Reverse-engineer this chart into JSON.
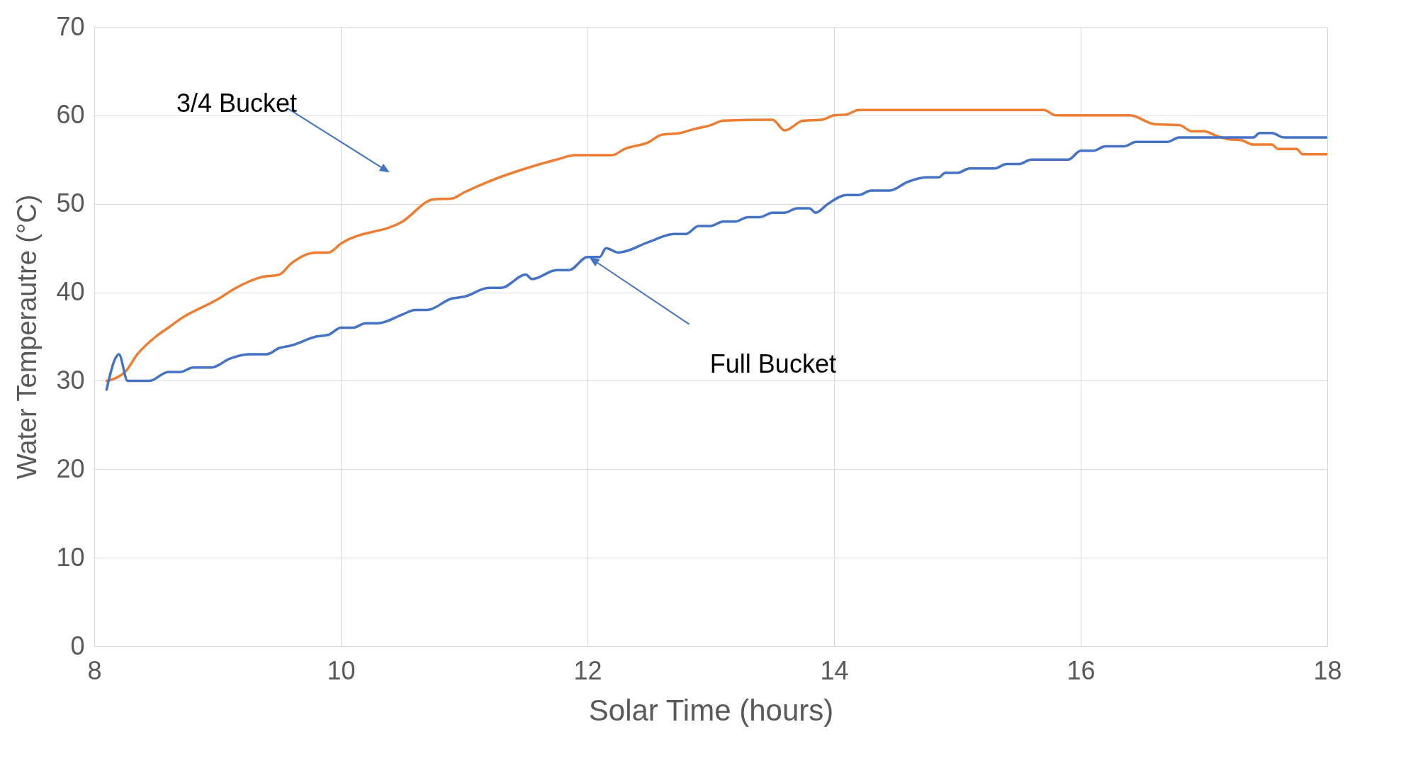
{
  "chart_data": {
    "type": "line",
    "xlabel": "Solar Time (hours)",
    "ylabel": "Water Temperautre (°C)",
    "xlim": [
      8,
      18
    ],
    "xticks": [
      8,
      10,
      12,
      14,
      16,
      18
    ],
    "ylim": [
      0,
      70
    ],
    "yticks": [
      0,
      10,
      20,
      30,
      40,
      50,
      60,
      70
    ],
    "grid": true,
    "series": [
      {
        "color": "#ed7d31",
        "x": [
          8.1,
          8.25,
          8.35,
          8.5,
          8.6,
          8.7,
          9.0,
          9.15,
          9.35,
          9.5,
          9.6,
          9.8,
          9.9,
          10.0,
          10.5,
          10.75,
          10.9,
          11.0,
          11.25,
          11.5,
          11.75,
          11.9,
          12.2,
          12.3,
          12.5,
          12.6,
          12.75,
          12.85,
          13.0,
          13.1,
          13.5,
          13.6,
          13.75,
          13.9,
          14.0,
          14.1,
          14.2,
          15.7,
          15.8,
          16.4,
          16.6,
          16.8,
          16.9,
          17.0,
          17.1,
          17.2,
          17.3,
          17.4,
          17.55,
          17.6,
          17.75,
          17.8,
          18.0
        ],
        "values": [
          30,
          31,
          33,
          35,
          36,
          37,
          39.2,
          40.5,
          41.7,
          42,
          43.3,
          44.5,
          44.5,
          45.5,
          48,
          50.5,
          50.6,
          51.3,
          52.8,
          54,
          55,
          55.5,
          55.5,
          56.2,
          57,
          57.8,
          58,
          58.4,
          58.9,
          59.4,
          59.5,
          58.3,
          59.4,
          59.5,
          60,
          60.1,
          60.6,
          60.6,
          60,
          60,
          59,
          58.9,
          58.2,
          58.2,
          57.7,
          57.3,
          57.2,
          56.7,
          56.7,
          56.2,
          56.2,
          55.6,
          55.6
        ]
      },
      {
        "color": "#4472c4",
        "x": [
          8.1,
          8.17,
          8.2,
          8.27,
          8.35,
          8.45,
          8.6,
          8.7,
          8.8,
          8.95,
          9.1,
          9.25,
          9.4,
          9.5,
          9.6,
          9.8,
          9.9,
          10.0,
          10.1,
          10.2,
          10.3,
          10.5,
          10.6,
          10.7,
          10.9,
          11.0,
          11.2,
          11.3,
          11.5,
          11.55,
          11.75,
          11.85,
          12.0,
          12.1,
          12.15,
          12.25,
          12.5,
          12.7,
          12.8,
          12.9,
          13.0,
          13.1,
          13.2,
          13.3,
          13.4,
          13.5,
          13.6,
          13.7,
          13.8,
          13.85,
          13.95,
          14.1,
          14.2,
          14.3,
          14.45,
          14.6,
          14.75,
          14.85,
          14.9,
          15.0,
          15.1,
          15.3,
          15.4,
          15.5,
          15.6,
          15.9,
          16.0,
          16.1,
          16.2,
          16.35,
          16.45,
          16.7,
          16.8,
          17.3,
          17.4,
          17.45,
          17.55,
          17.65,
          18.0
        ],
        "values": [
          29,
          32.5,
          33,
          30,
          30,
          30,
          31,
          31,
          31.5,
          31.5,
          32.5,
          33,
          33,
          33.7,
          34,
          35,
          35.2,
          36,
          36,
          36.5,
          36.5,
          37.5,
          38,
          38,
          39.3,
          39.5,
          40.5,
          40.5,
          42,
          41.5,
          42.5,
          42.5,
          44,
          44,
          45,
          44.5,
          45.7,
          46.6,
          46.6,
          47.5,
          47.5,
          48,
          48,
          48.5,
          48.5,
          49,
          49,
          49.5,
          49.5,
          49,
          50,
          51,
          51,
          51.5,
          51.5,
          52.5,
          53,
          53,
          53.5,
          53.5,
          54,
          54,
          54.5,
          54.5,
          55,
          55,
          56,
          56,
          56.5,
          56.5,
          57,
          57,
          57.5,
          57.5,
          57.5,
          58,
          58,
          57.5,
          57.5
        ]
      }
    ],
    "annotations": [
      "3/4 Bucket",
      "Full Bucket"
    ]
  }
}
